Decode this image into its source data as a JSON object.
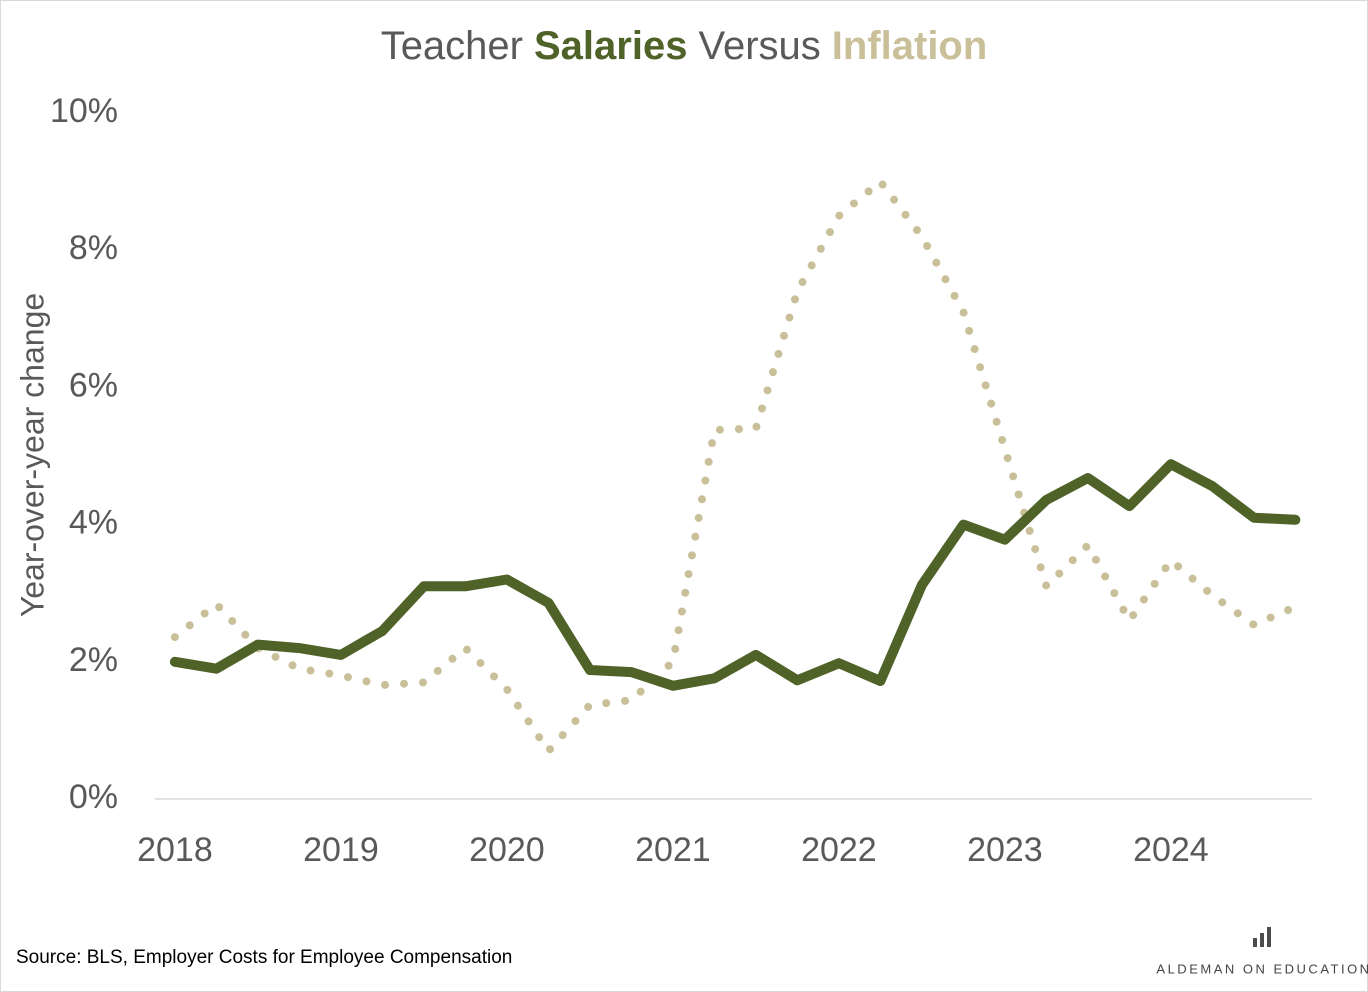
{
  "chart_data": {
    "type": "line",
    "title": [
      "Teacher",
      "Versus"
    ],
    "ylabel": "Year-over-year change",
    "x": [
      2018,
      2018.25,
      2018.5,
      2018.75,
      2019,
      2019.25,
      2019.5,
      2019.75,
      2020,
      2020.25,
      2020.5,
      2020.75,
      2021,
      2021.25,
      2021.5,
      2021.75,
      2022,
      2022.25,
      2022.5,
      2022.75,
      2023,
      2023.25,
      2023.5,
      2023.75,
      2024,
      2024.25,
      2024.5,
      2024.75
    ],
    "series": [
      {
        "name": "Salaries",
        "color": "#4f6228",
        "style": "solid",
        "values": [
          2.0,
          1.9,
          2.25,
          2.2,
          2.1,
          2.45,
          3.1,
          3.1,
          3.2,
          2.86,
          1.88,
          1.85,
          1.65,
          1.76,
          2.1,
          1.73,
          1.98,
          1.72,
          3.12,
          4.0,
          3.78,
          4.36,
          4.68,
          4.27,
          4.88,
          4.56,
          4.1,
          4.07
        ]
      },
      {
        "name": "Inflation",
        "color": "#c9c09a",
        "style": "dotted",
        "values": [
          2.36,
          2.84,
          2.2,
          1.9,
          1.8,
          1.66,
          1.7,
          2.2,
          1.6,
          0.7,
          1.37,
          1.44,
          2.0,
          5.38,
          5.4,
          7.4,
          8.5,
          9.0,
          8.2,
          7.1,
          5.1,
          3.1,
          3.7,
          2.6,
          3.48,
          2.97,
          2.54,
          2.8
        ]
      }
    ],
    "xlim": [
      2017.88,
      2024.85
    ],
    "xticks": [
      2018,
      2019,
      2020,
      2021,
      2022,
      2023,
      2024
    ],
    "ylim": [
      0,
      10
    ],
    "yticks": [
      {
        "value": 0,
        "label": "0%"
      },
      {
        "value": 2,
        "label": "2%"
      },
      {
        "value": 4,
        "label": "4%"
      },
      {
        "value": 6,
        "label": "6%"
      },
      {
        "value": 8,
        "label": "8%"
      },
      {
        "value": 10,
        "label": "10%"
      }
    ],
    "grid": false
  },
  "footer": {
    "source": "Source: BLS, Employer Costs for Employee Compensation",
    "brand": "ALDEMAN ON EDUCATION"
  }
}
